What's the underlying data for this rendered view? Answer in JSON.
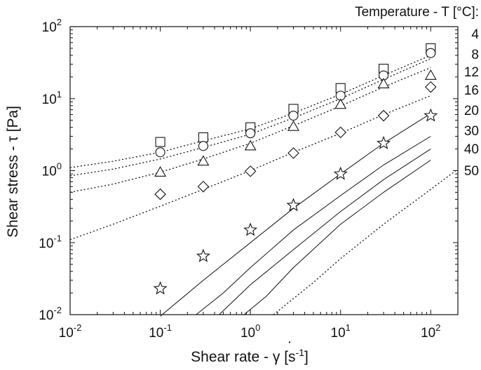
{
  "chart_data": {
    "type": "scatter",
    "xlabel": "Shear rate - γ [s⁻¹]",
    "xlabel_prefix": "Shear rate - ",
    "xlabel_symbol": "γ",
    "xlabel_unit_open": " [s",
    "xlabel_exp": "-1",
    "xlabel_unit_close": "]",
    "ylabel": "Shear stress - τ [Pa]",
    "xscale": "log",
    "yscale": "log",
    "xlim": [
      0.01,
      200
    ],
    "ylim": [
      0.01,
      100
    ],
    "x_ticks": [
      {
        "mantissa": "10",
        "exp": "-2"
      },
      {
        "mantissa": "10",
        "exp": "-1"
      },
      {
        "mantissa": "10",
        "exp": "0"
      },
      {
        "mantissa": "10",
        "exp": "1"
      },
      {
        "mantissa": "10",
        "exp": "2"
      }
    ],
    "y_ticks": [
      {
        "mantissa": "10",
        "exp": "-2"
      },
      {
        "mantissa": "10",
        "exp": "-1"
      },
      {
        "mantissa": "10",
        "exp": "0"
      },
      {
        "mantissa": "10",
        "exp": "1"
      },
      {
        "mantissa": "10",
        "exp": "2"
      }
    ],
    "legend_title": "Temperature - T [°C]:",
    "legend_entries": [
      "4",
      "8",
      "12",
      "16",
      "20",
      "30",
      "40",
      "50"
    ],
    "legend_position": "right",
    "grid": false,
    "series": [
      {
        "name": "4",
        "marker": "square",
        "points": [
          [
            0.1,
            2.5
          ],
          [
            0.3,
            2.9
          ],
          [
            1,
            4.0
          ],
          [
            3,
            7.2
          ],
          [
            10,
            14
          ],
          [
            30,
            26
          ],
          [
            100,
            50
          ]
        ],
        "fit": [
          [
            0.01,
            1.1
          ],
          [
            0.03,
            1.35
          ],
          [
            0.1,
            1.8
          ],
          [
            0.3,
            2.6
          ],
          [
            1,
            3.8
          ],
          [
            3,
            6.3
          ],
          [
            10,
            11.5
          ],
          [
            30,
            21
          ],
          [
            100,
            40
          ]
        ],
        "fit_style": "dotted"
      },
      {
        "name": "8",
        "marker": "circle",
        "points": [
          [
            0.1,
            1.8
          ],
          [
            0.3,
            2.2
          ],
          [
            1,
            3.3
          ],
          [
            3,
            5.8
          ],
          [
            10,
            11
          ],
          [
            30,
            21
          ],
          [
            100,
            43
          ]
        ],
        "fit": [
          [
            0.01,
            0.85
          ],
          [
            0.03,
            1.05
          ],
          [
            0.1,
            1.45
          ],
          [
            0.3,
            2.1
          ],
          [
            1,
            3.2
          ],
          [
            3,
            5.4
          ],
          [
            10,
            10
          ],
          [
            30,
            18.5
          ],
          [
            100,
            36
          ]
        ],
        "fit_style": "dotted"
      },
      {
        "name": "12",
        "marker": "triangle",
        "points": [
          [
            0.1,
            0.95
          ],
          [
            0.3,
            1.35
          ],
          [
            1,
            2.2
          ],
          [
            3,
            4.1
          ],
          [
            10,
            8.3
          ],
          [
            30,
            16
          ],
          [
            100,
            21
          ]
        ],
        "fit": [
          [
            0.01,
            0.5
          ],
          [
            0.03,
            0.65
          ],
          [
            0.1,
            0.95
          ],
          [
            0.3,
            1.45
          ],
          [
            1,
            2.4
          ],
          [
            3,
            4.2
          ],
          [
            10,
            7.9
          ],
          [
            30,
            14.5
          ],
          [
            100,
            27
          ]
        ],
        "fit_style": "dotted"
      },
      {
        "name": "16",
        "marker": "diamond",
        "points": [
          [
            0.1,
            0.47
          ],
          [
            0.3,
            0.6
          ],
          [
            1,
            0.98
          ],
          [
            3,
            1.75
          ],
          [
            10,
            3.4
          ],
          [
            30,
            5.8
          ],
          [
            100,
            14.5
          ]
        ],
        "fit": [
          [
            0.01,
            0.11
          ],
          [
            0.03,
            0.18
          ],
          [
            0.1,
            0.32
          ],
          [
            0.3,
            0.55
          ],
          [
            1,
            1.0
          ],
          [
            3,
            1.8
          ],
          [
            10,
            3.3
          ],
          [
            30,
            6.0
          ],
          [
            100,
            11
          ]
        ],
        "fit_style": "dotted"
      },
      {
        "name": "20",
        "marker": "star",
        "points": [
          [
            0.1,
            0.023
          ],
          [
            0.3,
            0.065
          ],
          [
            1,
            0.15
          ],
          [
            3,
            0.33
          ],
          [
            10,
            0.9
          ],
          [
            30,
            2.4
          ],
          [
            100,
            5.8
          ]
        ],
        "fit": [
          [
            0.1,
            0.0095
          ],
          [
            0.3,
            0.03
          ],
          [
            1,
            0.1
          ],
          [
            3,
            0.3
          ],
          [
            10,
            0.9
          ],
          [
            30,
            2.4
          ],
          [
            100,
            6.2
          ]
        ],
        "fit_style": "solid"
      },
      {
        "name": "30",
        "marker": "none",
        "points": [],
        "fit": [
          [
            0.25,
            0.01
          ],
          [
            0.5,
            0.02
          ],
          [
            1,
            0.045
          ],
          [
            3,
            0.15
          ],
          [
            10,
            0.45
          ],
          [
            30,
            1.2
          ],
          [
            100,
            3.0
          ]
        ],
        "fit_style": "solid"
      },
      {
        "name": "40",
        "marker": "none",
        "points": [],
        "fit": [
          [
            0.45,
            0.01
          ],
          [
            1,
            0.026
          ],
          [
            3,
            0.08
          ],
          [
            10,
            0.27
          ],
          [
            30,
            0.75
          ],
          [
            100,
            2.0
          ]
        ],
        "fit_style": "solid"
      },
      {
        "name": "50",
        "marker": "none",
        "points": [],
        "fit": [
          [
            0.85,
            0.01
          ],
          [
            1.5,
            0.018
          ],
          [
            3,
            0.045
          ],
          [
            10,
            0.18
          ],
          [
            30,
            0.5
          ],
          [
            100,
            1.4
          ]
        ],
        "fit_style": "solid"
      },
      {
        "name": "",
        "marker": "none",
        "points": [],
        "fit": [
          [
            1.8,
            0.01
          ],
          [
            5,
            0.028
          ],
          [
            10,
            0.06
          ],
          [
            30,
            0.18
          ],
          [
            100,
            0.55
          ],
          [
            200,
            1.05
          ]
        ],
        "fit_style": "dotted"
      }
    ]
  }
}
